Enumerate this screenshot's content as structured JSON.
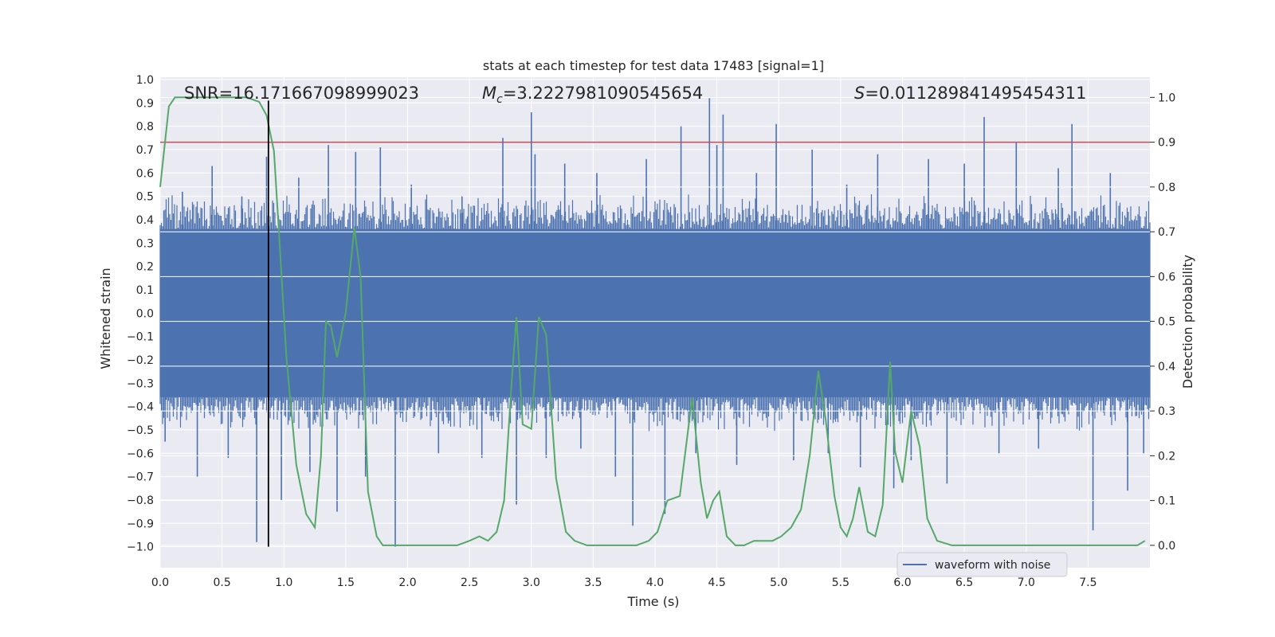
{
  "chart_data": {
    "type": "line",
    "title": "stats at each timestep for test data 17483 [signal=1]",
    "xlabel": "Time (s)",
    "ylabel_left": "Whitened strain",
    "ylabel_right": "Detection probability",
    "xlim": [
      0.0,
      8.0
    ],
    "ylim_left": [
      -1.09,
      1.01
    ],
    "ylim_right": [
      -0.05,
      1.045
    ],
    "x_ticks": [
      "0.0",
      "0.5",
      "1.0",
      "1.5",
      "2.0",
      "2.5",
      "3.0",
      "3.5",
      "4.0",
      "4.5",
      "5.0",
      "5.5",
      "6.0",
      "6.5",
      "7.0",
      "7.5"
    ],
    "y_left_ticks": [
      "1.0",
      "0.9",
      "0.8",
      "0.7",
      "0.6",
      "0.5",
      "0.4",
      "0.3",
      "0.2",
      "0.1",
      "0.0",
      "−0.1",
      "−0.2",
      "−0.3",
      "−0.4",
      "−0.5",
      "−0.6",
      "−0.7",
      "−0.8",
      "−0.9",
      "−1.0"
    ],
    "y_right_ticks": [
      "0.0",
      "0.1",
      "0.2",
      "0.3",
      "0.4",
      "0.5",
      "0.6",
      "0.7",
      "0.8",
      "0.9",
      "1.0"
    ],
    "grid": true,
    "colors": {
      "background": "#eaeaf2",
      "grid": "#ffffff",
      "waveform": "#4c72b0",
      "probability": "#55a868",
      "threshold": "#c44e52",
      "marker": "#000000"
    },
    "annotations": {
      "snr": "SNR=16.171667098999023",
      "mc_symbol": "M",
      "mc_subscript": "c",
      "mc_value": "=3.2227981090545654",
      "s_symbol": "S",
      "s_value": "=0.011289841495454311"
    },
    "threshold_probability": 0.9,
    "marker_time": 0.875,
    "waveform": {
      "name": "waveform with noise",
      "core_amplitude": 0.36,
      "band_amplitude": 0.47,
      "spike_times": [
        0.04,
        0.18,
        0.3,
        0.42,
        0.55,
        0.66,
        0.78,
        0.86,
        0.98,
        1.12,
        1.21,
        1.36,
        1.43,
        1.58,
        1.66,
        1.78,
        1.9,
        2.03,
        2.25,
        2.44,
        2.6,
        2.77,
        2.88,
        3.0,
        3.03,
        3.12,
        3.27,
        3.4,
        3.53,
        3.68,
        3.82,
        3.93,
        4.08,
        4.21,
        4.33,
        4.44,
        4.5,
        4.55,
        4.66,
        4.82,
        4.98,
        5.12,
        5.27,
        5.4,
        5.55,
        5.66,
        5.8,
        5.93,
        6.07,
        6.21,
        6.36,
        6.5,
        6.66,
        6.78,
        6.92,
        7.1,
        7.26,
        7.37,
        7.54,
        7.68,
        7.82,
        7.95
      ],
      "spike_values": [
        -0.55,
        0.52,
        -0.7,
        0.63,
        -0.62,
        0.5,
        -0.98,
        0.67,
        -0.8,
        0.58,
        -0.68,
        0.72,
        -0.85,
        0.69,
        -0.7,
        0.71,
        -1.0,
        0.55,
        -0.6,
        0.5,
        -0.62,
        0.75,
        -0.82,
        0.86,
        0.68,
        -0.62,
        0.64,
        -0.58,
        0.6,
        -0.7,
        -0.91,
        0.66,
        -0.86,
        0.8,
        -0.6,
        0.92,
        0.72,
        0.85,
        -0.65,
        0.6,
        0.81,
        -0.63,
        0.7,
        -0.6,
        0.55,
        -0.66,
        0.68,
        -0.75,
        -0.63,
        0.66,
        -0.73,
        0.64,
        0.84,
        -0.6,
        0.73,
        -0.58,
        0.62,
        0.81,
        -0.93,
        0.6,
        -0.76,
        -0.6
      ]
    },
    "probability": {
      "x": [
        0.0,
        0.07,
        0.12,
        0.2,
        0.3,
        0.4,
        0.5,
        0.6,
        0.7,
        0.8,
        0.86,
        0.92,
        0.96,
        1.02,
        1.1,
        1.18,
        1.25,
        1.3,
        1.34,
        1.38,
        1.43,
        1.5,
        1.57,
        1.62,
        1.68,
        1.75,
        1.8,
        1.9,
        2.0,
        2.1,
        2.2,
        2.3,
        2.4,
        2.5,
        2.58,
        2.65,
        2.72,
        2.78,
        2.84,
        2.88,
        2.93,
        3.0,
        3.06,
        3.12,
        3.2,
        3.28,
        3.35,
        3.45,
        3.55,
        3.65,
        3.75,
        3.85,
        3.95,
        4.02,
        4.1,
        4.2,
        4.3,
        4.37,
        4.42,
        4.47,
        4.52,
        4.58,
        4.65,
        4.72,
        4.8,
        4.88,
        4.95,
        5.02,
        5.1,
        5.18,
        5.25,
        5.32,
        5.38,
        5.45,
        5.5,
        5.55,
        5.6,
        5.65,
        5.72,
        5.78,
        5.84,
        5.9,
        5.94,
        6.0,
        6.07,
        6.14,
        6.2,
        6.28,
        6.4,
        6.6,
        6.8,
        7.0,
        7.2,
        7.4,
        7.6,
        7.7,
        7.8,
        7.9,
        7.96
      ],
      "y": [
        0.8,
        0.98,
        1.0,
        1.0,
        1.0,
        1.0,
        1.0,
        1.0,
        1.0,
        0.99,
        0.96,
        0.88,
        0.7,
        0.42,
        0.18,
        0.07,
        0.04,
        0.2,
        0.5,
        0.49,
        0.42,
        0.52,
        0.71,
        0.6,
        0.12,
        0.02,
        0.0,
        0.0,
        0.0,
        0.0,
        0.0,
        0.0,
        0.0,
        0.01,
        0.02,
        0.01,
        0.03,
        0.1,
        0.36,
        0.51,
        0.27,
        0.26,
        0.51,
        0.47,
        0.15,
        0.03,
        0.01,
        0.0,
        0.0,
        0.0,
        0.0,
        0.0,
        0.01,
        0.03,
        0.1,
        0.11,
        0.33,
        0.14,
        0.06,
        0.1,
        0.12,
        0.02,
        0.0,
        0.0,
        0.01,
        0.01,
        0.01,
        0.02,
        0.04,
        0.08,
        0.2,
        0.39,
        0.28,
        0.11,
        0.04,
        0.02,
        0.06,
        0.13,
        0.03,
        0.02,
        0.09,
        0.41,
        0.21,
        0.14,
        0.3,
        0.22,
        0.06,
        0.01,
        0.0,
        0.0,
        0.0,
        0.0,
        0.0,
        0.0,
        0.0,
        0.0,
        0.0,
        0.0,
        0.01
      ]
    }
  }
}
